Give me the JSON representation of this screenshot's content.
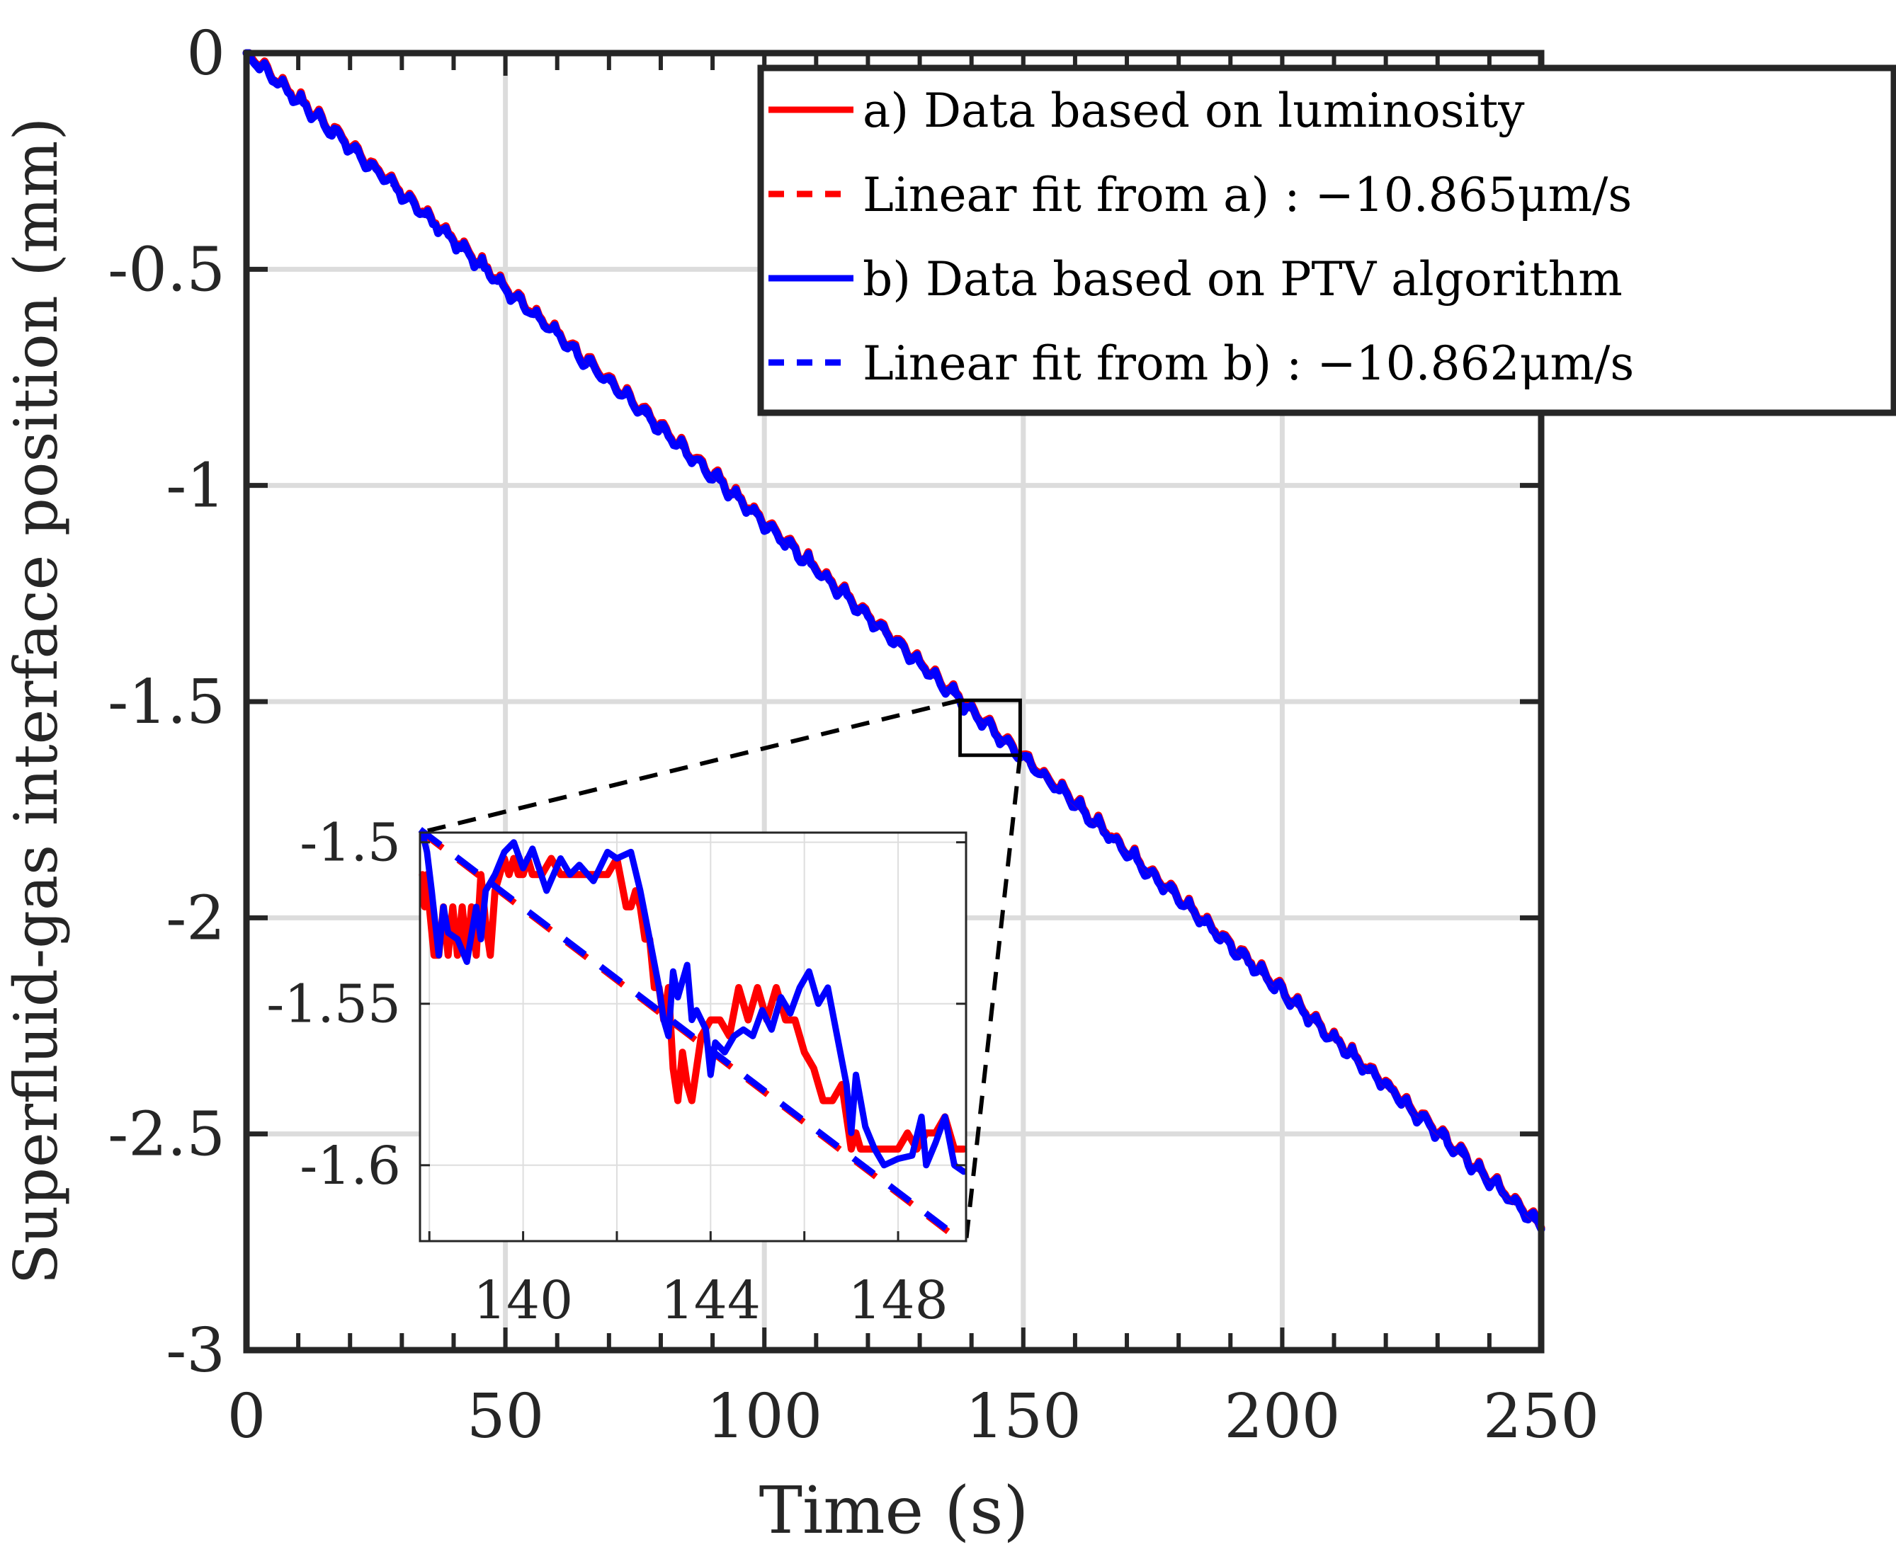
{
  "chart_data": [
    {
      "id": "main",
      "type": "line",
      "xlabel": "Time (s)",
      "ylabel": "Superfluid-gas interface position (mm)",
      "xlim": [
        0,
        250
      ],
      "ylim": [
        -3,
        0
      ],
      "xticks": [
        0,
        50,
        100,
        150,
        200,
        250
      ],
      "xtick_labels": [
        "0",
        "50",
        "100",
        "150",
        "200",
        "250"
      ],
      "yticks": [
        0,
        -0.5,
        -1,
        -1.5,
        -2,
        -2.5,
        -3
      ],
      "ytick_labels": [
        "0",
        "-0.5",
        "-1",
        "-1.5",
        "-2",
        "-2.5",
        "-3"
      ],
      "grid": true,
      "legend_position": "top-right",
      "legend": [
        {
          "label": "a) Data based on luminosity",
          "color": "#ff0000",
          "style": "solid"
        },
        {
          "label": "Linear fit from a) : −10.865μm/s",
          "color": "#ff0000",
          "style": "dashed"
        },
        {
          "label": "b) Data based on PTV algorithm",
          "color": "#0000ff",
          "style": "solid"
        },
        {
          "label": "Linear fit from b) : −10.862μm/s",
          "color": "#0000ff",
          "style": "dashed"
        }
      ],
      "series": [
        {
          "name": "a) Data based on luminosity",
          "color": "#ff0000",
          "style": "solid",
          "sample_step_s": 1,
          "wave_period_s": 3.5,
          "wave_amplitude_mm": 0.03,
          "slope_mm_per_s": -0.010865,
          "intercept_mm": 0,
          "t_range": [
            0,
            250
          ]
        },
        {
          "name": "b) Data based on PTV algorithm",
          "color": "#0000ff",
          "style": "solid",
          "sample_step_s": 1,
          "wave_period_s": 3.5,
          "wave_amplitude_mm": 0.03,
          "slope_mm_per_s": -0.010862,
          "intercept_mm": 0,
          "t_range": [
            0,
            250
          ]
        }
      ],
      "zoom_box": {
        "x": [
          137.8,
          149.4
        ],
        "y": [
          -1.624,
          -1.497
        ]
      }
    },
    {
      "id": "inset",
      "type": "line",
      "xlim": [
        137.8,
        149.45
      ],
      "ylim": [
        -1.6235,
        -1.497
      ],
      "xticks": [
        138,
        140,
        142,
        144,
        146,
        148
      ],
      "xtick_labels": [
        "",
        "140",
        "",
        "144",
        "",
        "148"
      ],
      "yticks": [
        -1.5,
        -1.55,
        -1.6
      ],
      "ytick_labels": [
        "-1.5",
        "-1.55",
        "-1.6"
      ],
      "grid": true,
      "series": [
        {
          "name": "a) Data based on luminosity",
          "color": "#ff0000",
          "style": "solid",
          "x": [
            137.85,
            137.9,
            137.95,
            138.0,
            138.1,
            138.2,
            138.3,
            138.4,
            138.5,
            138.6,
            138.7,
            138.8,
            138.9,
            139.0,
            139.1,
            139.2,
            139.3,
            139.4,
            139.5,
            139.6,
            139.7,
            139.8,
            139.9,
            140.0,
            140.1,
            140.2,
            140.4,
            140.6,
            140.8,
            141.0,
            141.2,
            141.4,
            141.6,
            141.8,
            142.0,
            142.2,
            142.3,
            142.4,
            142.5,
            142.6,
            142.7,
            142.8,
            142.9,
            143.0,
            143.1,
            143.2,
            143.3,
            143.4,
            143.5,
            143.6,
            143.8,
            144.0,
            144.2,
            144.4,
            144.6,
            144.8,
            145.0,
            145.2,
            145.4,
            145.6,
            145.8,
            146.0,
            146.2,
            146.4,
            146.6,
            146.8,
            147.0,
            147.1,
            147.2,
            147.3,
            147.4,
            147.6,
            147.8,
            148.0,
            148.2,
            148.4,
            148.6,
            148.8,
            149.0,
            149.2,
            149.4
          ],
          "y": [
            -1.51,
            -1.52,
            -1.51,
            -1.52,
            -1.535,
            -1.535,
            -1.52,
            -1.535,
            -1.52,
            -1.535,
            -1.52,
            -1.535,
            -1.52,
            -1.535,
            -1.51,
            -1.525,
            -1.535,
            -1.515,
            -1.51,
            -1.505,
            -1.51,
            -1.505,
            -1.51,
            -1.51,
            -1.505,
            -1.51,
            -1.51,
            -1.505,
            -1.51,
            -1.51,
            -1.51,
            -1.51,
            -1.51,
            -1.51,
            -1.505,
            -1.52,
            -1.52,
            -1.515,
            -1.52,
            -1.53,
            -1.53,
            -1.545,
            -1.545,
            -1.555,
            -1.545,
            -1.57,
            -1.58,
            -1.565,
            -1.575,
            -1.58,
            -1.56,
            -1.555,
            -1.555,
            -1.56,
            -1.545,
            -1.555,
            -1.545,
            -1.555,
            -1.545,
            -1.555,
            -1.555,
            -1.565,
            -1.57,
            -1.58,
            -1.58,
            -1.575,
            -1.595,
            -1.59,
            -1.595,
            -1.595,
            -1.595,
            -1.595,
            -1.595,
            -1.595,
            -1.59,
            -1.595,
            -1.59,
            -1.59,
            -1.585,
            -1.595,
            -1.595
          ]
        },
        {
          "name": "b) Data based on PTV algorithm",
          "color": "#0000ff",
          "style": "solid",
          "x": [
            137.85,
            137.95,
            138.05,
            138.2,
            138.3,
            138.4,
            138.6,
            138.8,
            139.0,
            139.1,
            139.2,
            139.4,
            139.6,
            139.8,
            140.0,
            140.2,
            140.5,
            140.8,
            141.0,
            141.2,
            141.5,
            141.8,
            142.0,
            142.3,
            142.5,
            142.7,
            142.9,
            143.0,
            143.1,
            143.2,
            143.3,
            143.5,
            143.6,
            143.7,
            143.9,
            144.0,
            144.1,
            144.3,
            144.5,
            144.7,
            144.9,
            145.1,
            145.3,
            145.5,
            145.7,
            145.9,
            146.1,
            146.3,
            146.5,
            146.7,
            146.9,
            147.0,
            147.1,
            147.3,
            147.5,
            147.7,
            148.0,
            148.3,
            148.5,
            148.6,
            148.8,
            149.0,
            149.2,
            149.4
          ],
          "y": [
            -1.497,
            -1.503,
            -1.515,
            -1.535,
            -1.52,
            -1.528,
            -1.53,
            -1.537,
            -1.52,
            -1.53,
            -1.515,
            -1.51,
            -1.503,
            -1.5,
            -1.508,
            -1.502,
            -1.515,
            -1.505,
            -1.51,
            -1.507,
            -1.512,
            -1.503,
            -1.505,
            -1.503,
            -1.515,
            -1.53,
            -1.545,
            -1.555,
            -1.56,
            -1.54,
            -1.548,
            -1.538,
            -1.555,
            -1.552,
            -1.558,
            -1.572,
            -1.562,
            -1.565,
            -1.56,
            -1.558,
            -1.56,
            -1.552,
            -1.558,
            -1.548,
            -1.553,
            -1.545,
            -1.54,
            -1.55,
            -1.545,
            -1.56,
            -1.575,
            -1.59,
            -1.572,
            -1.588,
            -1.595,
            -1.6,
            -1.598,
            -1.597,
            -1.585,
            -1.6,
            -1.593,
            -1.585,
            -1.6,
            -1.602
          ]
        },
        {
          "name": "Linear fit from a)",
          "color": "#ff0000",
          "style": "dashed",
          "x": [
            137.85,
            149.2
          ],
          "y": [
            -1.497,
            -1.622
          ]
        },
        {
          "name": "Linear fit from b)",
          "color": "#0000ff",
          "style": "dashed",
          "x": [
            137.85,
            149.2
          ],
          "y": [
            -1.4965,
            -1.6215
          ]
        }
      ]
    }
  ]
}
